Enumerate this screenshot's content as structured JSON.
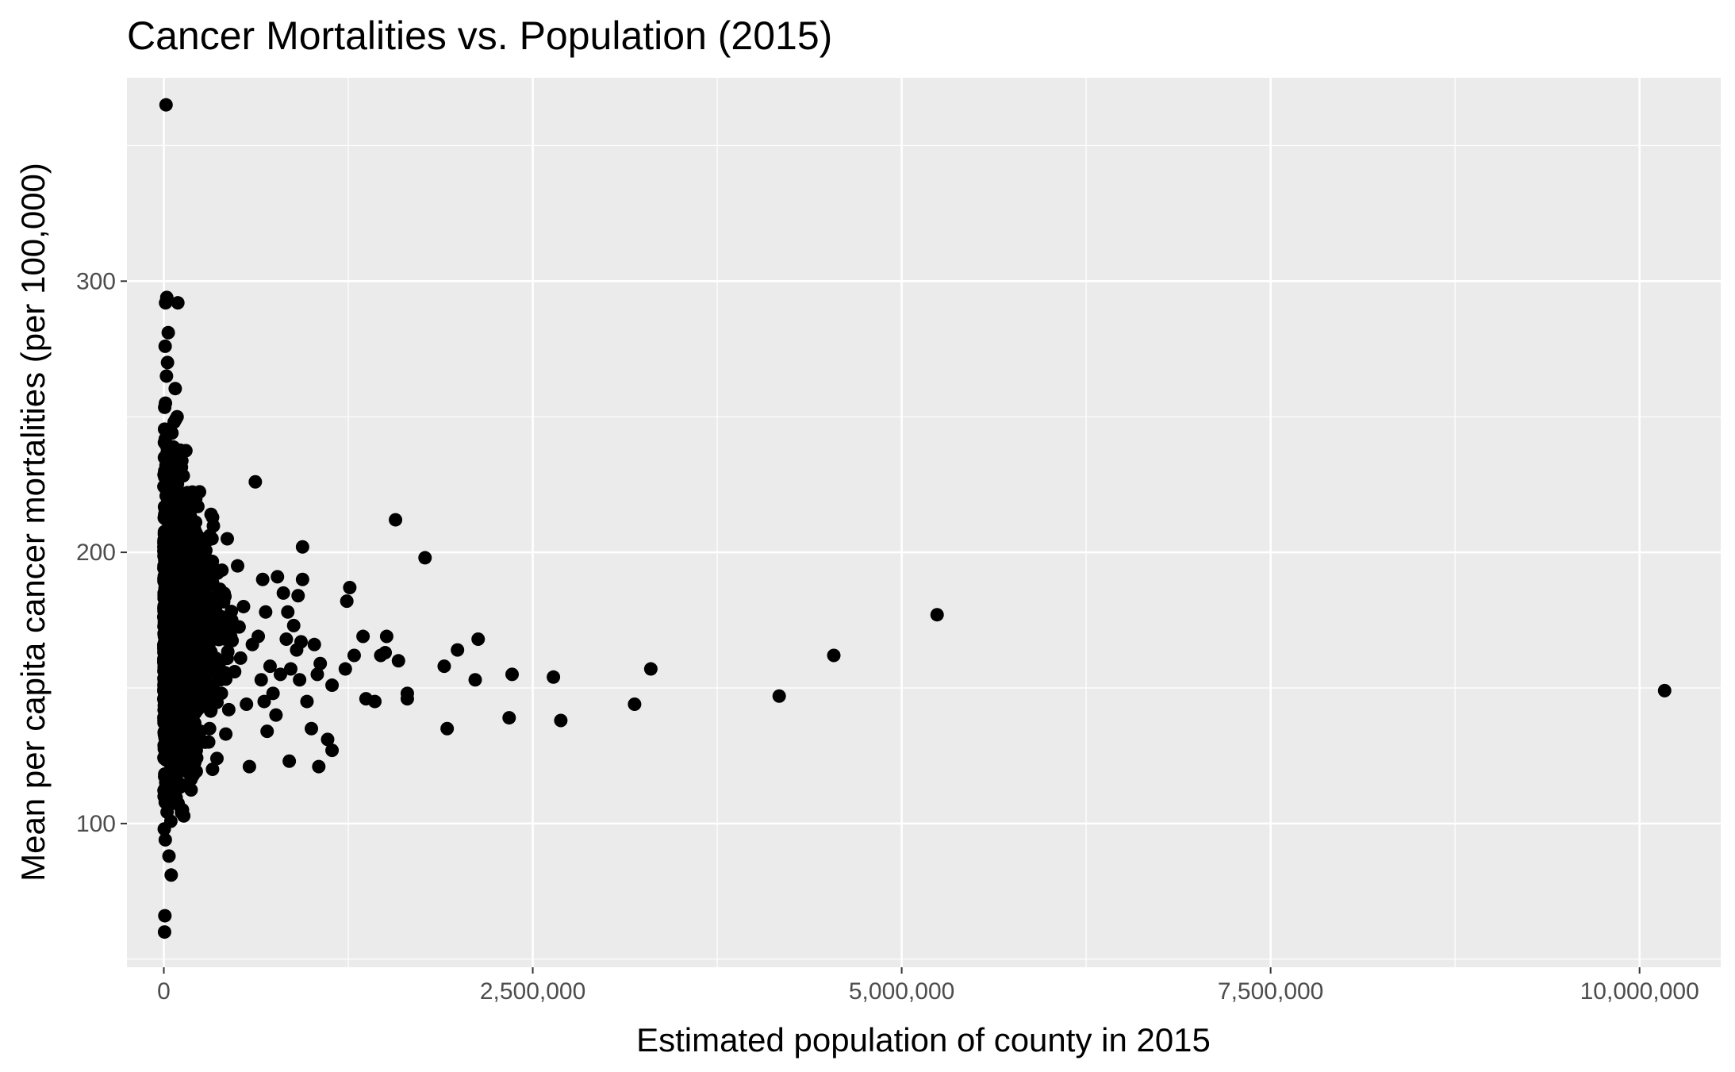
{
  "chart_data": {
    "type": "scatter",
    "title": "Cancer Mortalities vs. Population (2015)",
    "xlabel": "Estimated population of county in 2015",
    "ylabel": "Mean per capita cancer mortalities (per 100,000)",
    "xlim": [
      -250000,
      10550000
    ],
    "ylim": [
      47,
      375
    ],
    "x_ticks": [
      0,
      2500000,
      5000000,
      7500000,
      10000000
    ],
    "x_tick_labels": [
      "0",
      "2,500,000",
      "5,000,000",
      "7,500,000",
      "10,000,000"
    ],
    "y_ticks": [
      100,
      200,
      300
    ],
    "y_tick_labels": [
      "100",
      "200",
      "300"
    ],
    "grid": true,
    "legend": "none",
    "colors": {
      "panel": "#ebebeb",
      "grid": "#ffffff",
      "point": "#000000"
    },
    "points": [
      [
        10170000,
        149
      ],
      [
        5240000,
        177
      ],
      [
        4540000,
        162
      ],
      [
        4170000,
        147
      ],
      [
        3300000,
        157
      ],
      [
        3190000,
        144
      ],
      [
        2690000,
        138
      ],
      [
        2640000,
        154
      ],
      [
        2360000,
        155
      ],
      [
        2340000,
        139
      ],
      [
        2130000,
        168
      ],
      [
        2110000,
        153
      ],
      [
        1990000,
        164
      ],
      [
        1920000,
        135
      ],
      [
        1900000,
        158
      ],
      [
        1770000,
        198
      ],
      [
        1650000,
        148
      ],
      [
        1650000,
        146
      ],
      [
        1590000,
        160
      ],
      [
        1570000,
        212
      ],
      [
        1510000,
        169
      ],
      [
        1500000,
        163
      ],
      [
        1470000,
        162
      ],
      [
        1430000,
        145
      ],
      [
        1370000,
        146
      ],
      [
        1350000,
        169
      ],
      [
        1290000,
        162
      ],
      [
        1260000,
        187
      ],
      [
        1240000,
        182
      ],
      [
        1230000,
        157
      ],
      [
        1140000,
        151
      ],
      [
        1140000,
        127
      ],
      [
        1110000,
        131
      ],
      [
        1060000,
        159
      ],
      [
        1050000,
        121
      ],
      [
        1040000,
        155
      ],
      [
        1020000,
        166
      ],
      [
        1000000,
        135
      ],
      [
        970000,
        145
      ],
      [
        940000,
        190
      ],
      [
        940000,
        202
      ],
      [
        930000,
        167
      ],
      [
        920000,
        153
      ],
      [
        910000,
        184
      ],
      [
        900000,
        164
      ],
      [
        880000,
        173
      ],
      [
        860000,
        157
      ],
      [
        850000,
        123
      ],
      [
        840000,
        178
      ],
      [
        830000,
        168
      ],
      [
        810000,
        185
      ],
      [
        790000,
        155
      ],
      [
        770000,
        191
      ],
      [
        760000,
        140
      ],
      [
        740000,
        148
      ],
      [
        720000,
        158
      ],
      [
        700000,
        134
      ],
      [
        690000,
        178
      ],
      [
        680000,
        145
      ],
      [
        670000,
        190
      ],
      [
        660000,
        153
      ],
      [
        640000,
        169
      ],
      [
        620000,
        226
      ],
      [
        600000,
        166
      ],
      [
        580000,
        121
      ],
      [
        560000,
        144
      ],
      [
        540000,
        180
      ],
      [
        520000,
        161
      ],
      [
        500000,
        195
      ],
      [
        480000,
        156
      ],
      [
        460000,
        175
      ],
      [
        440000,
        142
      ],
      [
        430000,
        205
      ],
      [
        420000,
        133
      ],
      [
        400000,
        170
      ],
      [
        390000,
        148
      ],
      [
        370000,
        186
      ],
      [
        360000,
        124
      ],
      [
        340000,
        158
      ],
      [
        330000,
        120
      ],
      [
        320000,
        214
      ],
      [
        310000,
        135
      ],
      [
        300000,
        178
      ],
      [
        290000,
        150
      ],
      [
        280000,
        130
      ],
      [
        270000,
        192
      ],
      [
        260000,
        165
      ],
      [
        250000,
        143
      ],
      [
        240000,
        200
      ],
      [
        230000,
        171
      ],
      [
        220000,
        127
      ],
      [
        210000,
        188
      ],
      [
        200000,
        156
      ],
      [
        190000,
        207
      ],
      [
        180000,
        140
      ],
      [
        170000,
        180
      ],
      [
        160000,
        222
      ],
      [
        150000,
        152
      ],
      [
        140000,
        198
      ],
      [
        130000,
        121
      ],
      [
        120000,
        104
      ],
      [
        110000,
        213
      ],
      [
        100000,
        193
      ],
      [
        90000,
        250
      ],
      [
        80000,
        174
      ],
      [
        70000,
        232
      ],
      [
        60000,
        146
      ],
      [
        55000,
        244
      ],
      [
        50000,
        81
      ],
      [
        45000,
        220
      ],
      [
        40000,
        180
      ],
      [
        35000,
        88
      ],
      [
        30000,
        281
      ],
      [
        28000,
        205
      ],
      [
        25000,
        270
      ],
      [
        22000,
        160
      ],
      [
        20000,
        294
      ],
      [
        18000,
        265
      ],
      [
        15000,
        365
      ],
      [
        13000,
        170
      ],
      [
        11000,
        255
      ],
      [
        10000,
        94
      ],
      [
        9000,
        276
      ],
      [
        8000,
        190
      ],
      [
        7000,
        66
      ],
      [
        6000,
        230
      ],
      [
        5000,
        60
      ],
      [
        4000,
        150
      ],
      [
        3000,
        98
      ],
      [
        2000,
        110
      ],
      [
        95000,
        292
      ],
      [
        12000,
        292
      ]
    ]
  }
}
